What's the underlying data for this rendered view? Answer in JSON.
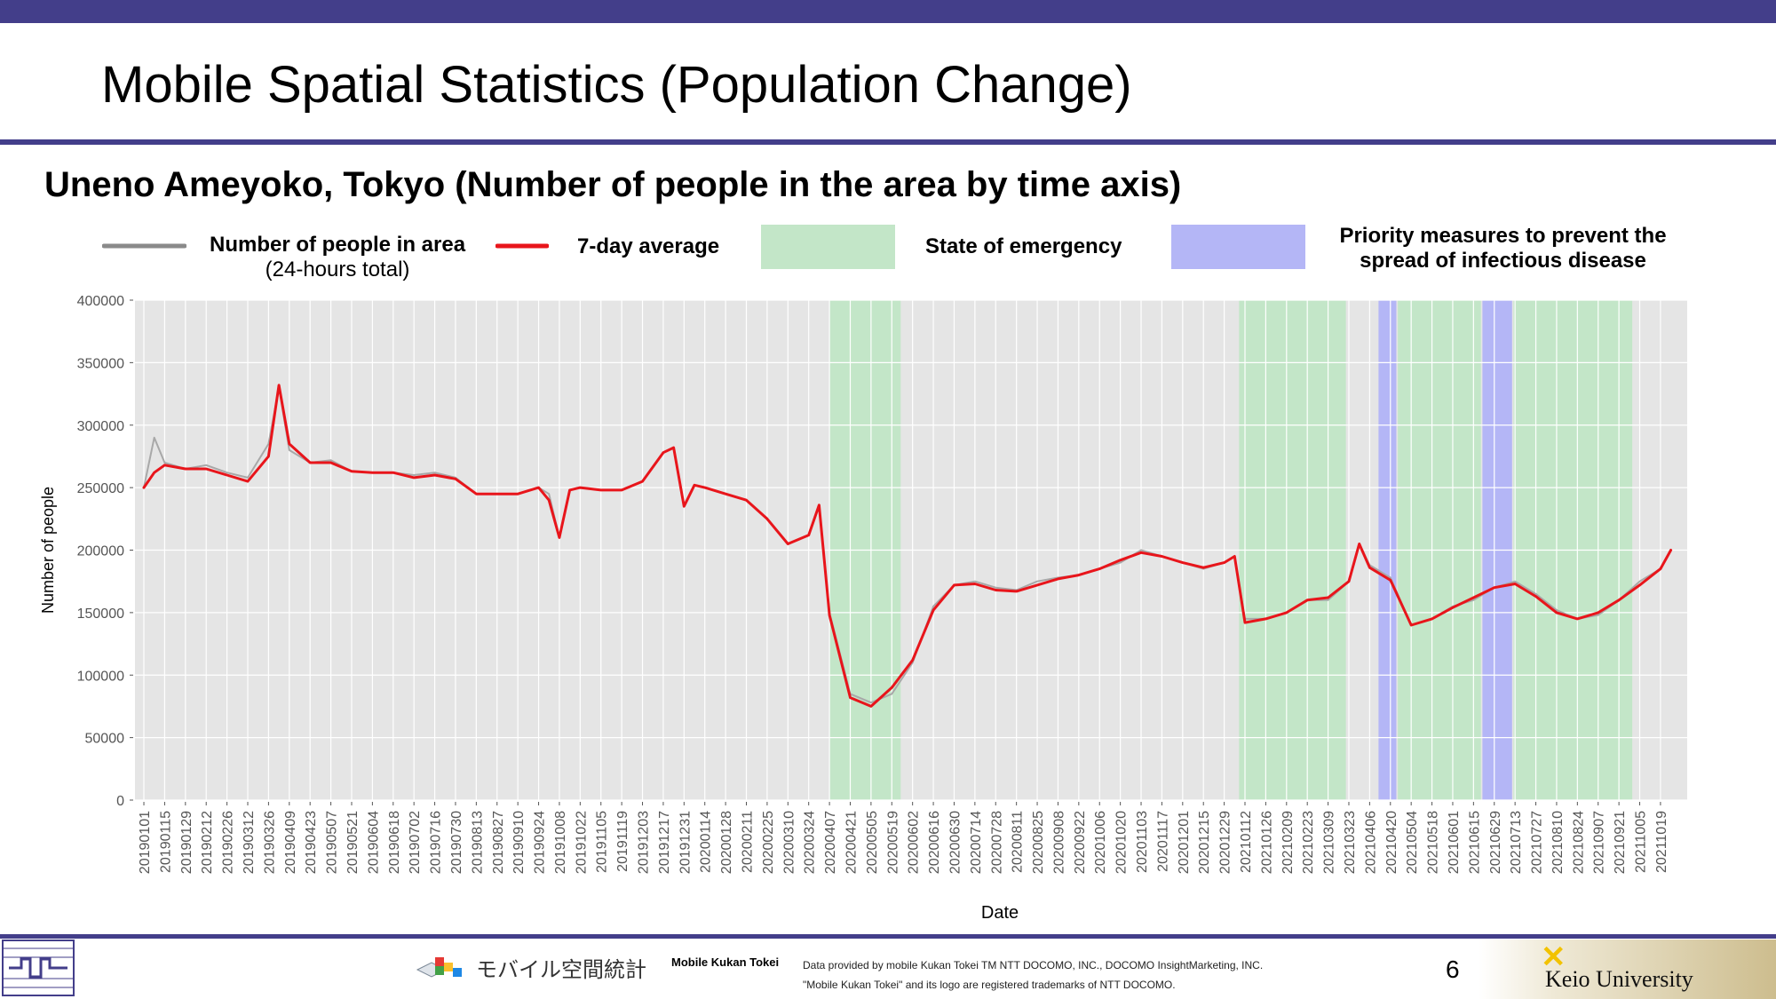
{
  "slide": {
    "title": "Mobile Spatial Statistics (Population Change)",
    "subtitle": "Uneno Ameyoko, Tokyo (Number of people in the area by time axis)",
    "page_number": "6"
  },
  "legend": {
    "count_label": "Number of people in area",
    "count_sublabel": "(24-hours total)",
    "avg_label": "7-day average",
    "emergency_label": "State of emergency",
    "priority_label_line1": "Priority measures to prevent the",
    "priority_label_line2": "spread of infectious disease"
  },
  "colors": {
    "brand": "#433e8a",
    "count_line": "#a8a8a8",
    "avg_line": "#e8151b",
    "emergency": "#c3e6c8",
    "priority": "#b4b6f6",
    "plot_bg": "#e5e5e5"
  },
  "chart_data": {
    "type": "line",
    "xlabel": "Date",
    "ylabel": "Number of people",
    "ylim": [
      0,
      400000
    ],
    "grid": true,
    "y_ticks": [
      "0",
      "50000",
      "100000",
      "150000",
      "200000",
      "250000",
      "300000",
      "350000",
      "400000"
    ],
    "x_ticks": [
      "20190101",
      "20190115",
      "20190129",
      "20190212",
      "20190226",
      "20190312",
      "20190326",
      "20190409",
      "20190423",
      "20190507",
      "20190521",
      "20190604",
      "20190618",
      "20190702",
      "20190716",
      "20190730",
      "20190813",
      "20190827",
      "20190910",
      "20190924",
      "20191008",
      "20191022",
      "20191105",
      "20191119",
      "20191203",
      "20191217",
      "20191231",
      "20200114",
      "20200128",
      "20200211",
      "20200225",
      "20200310",
      "20200324",
      "20200407",
      "20200421",
      "20200505",
      "20200519",
      "20200602",
      "20200616",
      "20200630",
      "20200714",
      "20200728",
      "20200811",
      "20200825",
      "20200908",
      "20200922",
      "20201006",
      "20201020",
      "20201103",
      "20201117",
      "20201201",
      "20201215",
      "20201229",
      "20210112",
      "20210126",
      "20210209",
      "20210223",
      "20210309",
      "20210323",
      "20210406",
      "20210420",
      "20210504",
      "20210518",
      "20210601",
      "20210615",
      "20210629",
      "20210713",
      "20210727",
      "20210810",
      "20210824",
      "20210907",
      "20210921",
      "20211005",
      "20211019"
    ],
    "shaded_periods": [
      {
        "kind": "emergency",
        "start": "20200407",
        "end": "20200525"
      },
      {
        "kind": "emergency",
        "start": "20210108",
        "end": "20210321"
      },
      {
        "kind": "priority",
        "start": "20210412",
        "end": "20210424"
      },
      {
        "kind": "emergency",
        "start": "20210425",
        "end": "20210620"
      },
      {
        "kind": "priority",
        "start": "20210621",
        "end": "20210711"
      },
      {
        "kind": "emergency",
        "start": "20210712",
        "end": "20210930"
      }
    ],
    "series": [
      {
        "name": "Number of people in area",
        "x": [
          "20190101",
          "20190108",
          "20190115",
          "20190129",
          "20190212",
          "20190226",
          "20190312",
          "20190326",
          "20190402",
          "20190409",
          "20190423",
          "20190507",
          "20190521",
          "20190604",
          "20190618",
          "20190702",
          "20190716",
          "20190730",
          "20190813",
          "20190827",
          "20190910",
          "20190924",
          "20191001",
          "20191008",
          "20191015",
          "20191022",
          "20191105",
          "20191119",
          "20191203",
          "20191217",
          "20191224",
          "20191231",
          "20200107",
          "20200114",
          "20200128",
          "20200211",
          "20200225",
          "20200310",
          "20200324",
          "20200331",
          "20200407",
          "20200421",
          "20200505",
          "20200519",
          "20200602",
          "20200616",
          "20200630",
          "20200714",
          "20200728",
          "20200811",
          "20200825",
          "20200908",
          "20200922",
          "20201006",
          "20201020",
          "20201103",
          "20201117",
          "20201201",
          "20201215",
          "20201229",
          "20210105",
          "20210112",
          "20210126",
          "20210209",
          "20210223",
          "20210309",
          "20210323",
          "20210330",
          "20210406",
          "20210420",
          "20210504",
          "20210518",
          "20210601",
          "20210615",
          "20210629",
          "20210713",
          "20210727",
          "20210810",
          "20210824",
          "20210907",
          "20210921",
          "20211005",
          "20211019",
          "20211026"
        ],
        "y": [
          250000,
          290000,
          270000,
          265000,
          268000,
          262000,
          258000,
          285000,
          330000,
          280000,
          270000,
          272000,
          263000,
          262000,
          262000,
          260000,
          262000,
          258000,
          245000,
          245000,
          245000,
          250000,
          245000,
          210000,
          248000,
          250000,
          248000,
          248000,
          255000,
          278000,
          282000,
          235000,
          252000,
          250000,
          245000,
          240000,
          225000,
          205000,
          212000,
          236000,
          150000,
          85000,
          78000,
          85000,
          110000,
          155000,
          172000,
          175000,
          170000,
          168000,
          175000,
          178000,
          180000,
          185000,
          190000,
          200000,
          195000,
          190000,
          185000,
          190000,
          195000,
          145000,
          145000,
          150000,
          160000,
          160000,
          175000,
          205000,
          188000,
          178000,
          140000,
          145000,
          155000,
          160000,
          170000,
          175000,
          165000,
          152000,
          145000,
          148000,
          160000,
          175000,
          185000,
          200000
        ]
      },
      {
        "name": "7-day average",
        "x": [
          "20190101",
          "20190108",
          "20190115",
          "20190129",
          "20190212",
          "20190226",
          "20190312",
          "20190326",
          "20190402",
          "20190409",
          "20190423",
          "20190507",
          "20190521",
          "20190604",
          "20190618",
          "20190702",
          "20190716",
          "20190730",
          "20190813",
          "20190827",
          "20190910",
          "20190924",
          "20191001",
          "20191008",
          "20191015",
          "20191022",
          "20191105",
          "20191119",
          "20191203",
          "20191217",
          "20191224",
          "20191231",
          "20200107",
          "20200114",
          "20200128",
          "20200211",
          "20200225",
          "20200310",
          "20200324",
          "20200331",
          "20200407",
          "20200421",
          "20200505",
          "20200519",
          "20200602",
          "20200616",
          "20200630",
          "20200714",
          "20200728",
          "20200811",
          "20200825",
          "20200908",
          "20200922",
          "20201006",
          "20201020",
          "20201103",
          "20201117",
          "20201201",
          "20201215",
          "20201229",
          "20210105",
          "20210112",
          "20210126",
          "20210209",
          "20210223",
          "20210309",
          "20210323",
          "20210330",
          "20210406",
          "20210420",
          "20210504",
          "20210518",
          "20210601",
          "20210615",
          "20210629",
          "20210713",
          "20210727",
          "20210810",
          "20210824",
          "20210907",
          "20210921",
          "20211005",
          "20211019",
          "20211026"
        ],
        "y": [
          250000,
          262000,
          268000,
          265000,
          265000,
          260000,
          255000,
          275000,
          332000,
          285000,
          270000,
          270000,
          263000,
          262000,
          262000,
          258000,
          260000,
          257000,
          245000,
          245000,
          245000,
          250000,
          240000,
          210000,
          248000,
          250000,
          248000,
          248000,
          255000,
          278000,
          282000,
          235000,
          252000,
          250000,
          245000,
          240000,
          225000,
          205000,
          212000,
          236000,
          148000,
          82000,
          75000,
          90000,
          112000,
          152000,
          172000,
          173000,
          168000,
          167000,
          172000,
          177000,
          180000,
          185000,
          192000,
          198000,
          195000,
          190000,
          186000,
          190000,
          195000,
          142000,
          145000,
          150000,
          160000,
          162000,
          175000,
          205000,
          186000,
          176000,
          140000,
          145000,
          154000,
          162000,
          170000,
          173000,
          163000,
          150000,
          145000,
          150000,
          160000,
          172000,
          185000,
          200000
        ]
      }
    ]
  },
  "footer": {
    "kukan_logo_text": "モバイル空間統計",
    "kukan_name": "Mobile Kukan Tokei",
    "credit_line1": "Data provided by mobile Kukan Tokei TM NTT DOCOMO, INC., DOCOMO InsightMarketing, INC.",
    "credit_line2": "\"Mobile Kukan Tokei\" and its logo are registered trademarks of NTT DOCOMO.",
    "university": "Keio University"
  }
}
